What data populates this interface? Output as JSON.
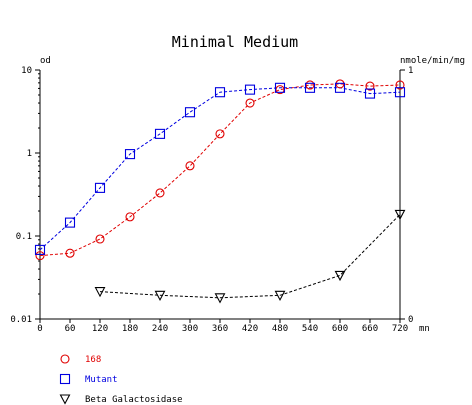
{
  "chart_data": {
    "type": "line",
    "title": "Minimal Medium",
    "left_axis": {
      "label": "od",
      "scale": "log",
      "range": [
        0.01,
        10
      ],
      "tick_values": [
        0.01,
        0.1,
        1,
        10
      ],
      "tick_labels": [
        "0.01",
        "0.1",
        "1",
        "10"
      ]
    },
    "right_axis": {
      "label": "nmole/min/mg",
      "scale": "linear",
      "range": [
        0,
        1
      ],
      "tick_values": [
        0,
        1
      ],
      "tick_labels": [
        "0",
        "1"
      ]
    },
    "x_axis": {
      "unit_label": "mn",
      "range": [
        0,
        720
      ],
      "tick_values": [
        0,
        60,
        120,
        180,
        240,
        300,
        360,
        420,
        480,
        540,
        600,
        660,
        720
      ],
      "tick_labels": [
        "0",
        "60",
        "120",
        "180",
        "240",
        "300",
        "360",
        "420",
        "480",
        "540",
        "600",
        "660",
        "720"
      ]
    },
    "grid": false,
    "legend_position": "bottom-left",
    "series": [
      {
        "name": "168",
        "axis": "left",
        "color": "#e00000",
        "marker": "circle",
        "x": [
          0,
          60,
          120,
          180,
          240,
          300,
          360,
          420,
          480,
          540,
          600,
          660,
          720
        ],
        "y": [
          0.058,
          0.062,
          0.092,
          0.17,
          0.33,
          0.7,
          1.7,
          4.0,
          5.8,
          6.6,
          6.8,
          6.4,
          6.6
        ]
      },
      {
        "name": "Mutant",
        "axis": "left",
        "color": "#0000e0",
        "marker": "square",
        "x": [
          0,
          60,
          120,
          180,
          240,
          300,
          360,
          420,
          480,
          540,
          600,
          660,
          720
        ],
        "y": [
          0.068,
          0.145,
          0.38,
          0.97,
          1.7,
          3.1,
          5.4,
          5.8,
          6.1,
          6.1,
          6.1,
          5.2,
          5.4
        ]
      },
      {
        "name": "Beta Galactosidase",
        "axis": "right",
        "color": "#000000",
        "marker": "triangle-down",
        "x": [
          120,
          240,
          360,
          480,
          600,
          720
        ],
        "y": [
          0.11,
          0.095,
          0.085,
          0.095,
          0.175,
          0.42
        ]
      }
    ]
  }
}
